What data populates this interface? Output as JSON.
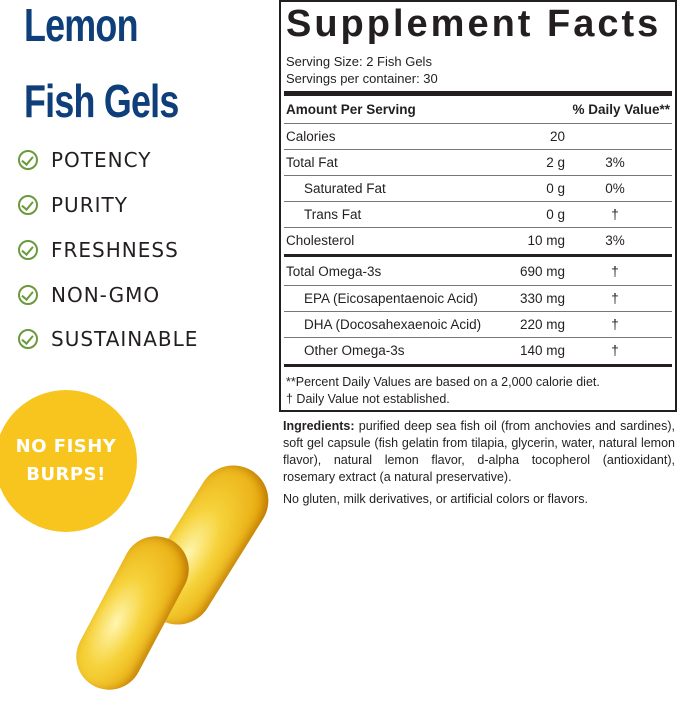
{
  "product": {
    "title_line1": "Lemon",
    "title_line2": "Fish Gels",
    "title_color": "#0e3f7a",
    "benefits": [
      "POTENCY",
      "PURITY",
      "FRESHNESS",
      "NON-GMO",
      "SUSTAINABLE"
    ],
    "check_color": "#6b9a3c",
    "badge": {
      "line1": "NO FISHY",
      "line2": "BURPS!",
      "color": "#f7c51e"
    }
  },
  "facts": {
    "title": "Supplement Facts",
    "serving_size": "Serving Size: 2 Fish Gels",
    "servings_per_container": "Servings per container: 30",
    "header_amount": "Amount Per Serving",
    "header_dv": "% Daily Value**",
    "rows": [
      {
        "name": "Calories",
        "amount": "20",
        "dv": ""
      },
      {
        "name": "Total Fat",
        "amount": "2 g",
        "dv": "3%"
      },
      {
        "name": "Saturated Fat",
        "amount": "0 g",
        "dv": "0%"
      },
      {
        "name": "Trans Fat",
        "amount": "0 g",
        "dv": "†"
      },
      {
        "name": "Cholesterol",
        "amount": "10 mg",
        "dv": "3%"
      },
      {
        "name": "Total Omega-3s",
        "amount": "690 mg",
        "dv": "†"
      },
      {
        "name": "EPA (Eicosapentaenoic Acid)",
        "amount": "330 mg",
        "dv": "†"
      },
      {
        "name": "DHA (Docosahexaenoic Acid)",
        "amount": "220 mg",
        "dv": "†"
      },
      {
        "name": "Other Omega-3s",
        "amount": "140 mg",
        "dv": "†"
      }
    ],
    "footnote1": "**Percent Daily Values are based on a 2,000 calorie diet.",
    "footnote2": "†  Daily Value not established."
  },
  "ingredients": {
    "label": "Ingredients:",
    "text": " purified deep sea fish oil (from anchovies and sardines), soft gel capsule (fish gelatin from tilapia, glycerin, water, natural lemon flavor), natural lemon flavor, d-alpha tocopherol (antioxidant), rosemary extract (a natural preservative).",
    "free_from": "No gluten, milk derivatives, or artificial colors or flavors."
  }
}
